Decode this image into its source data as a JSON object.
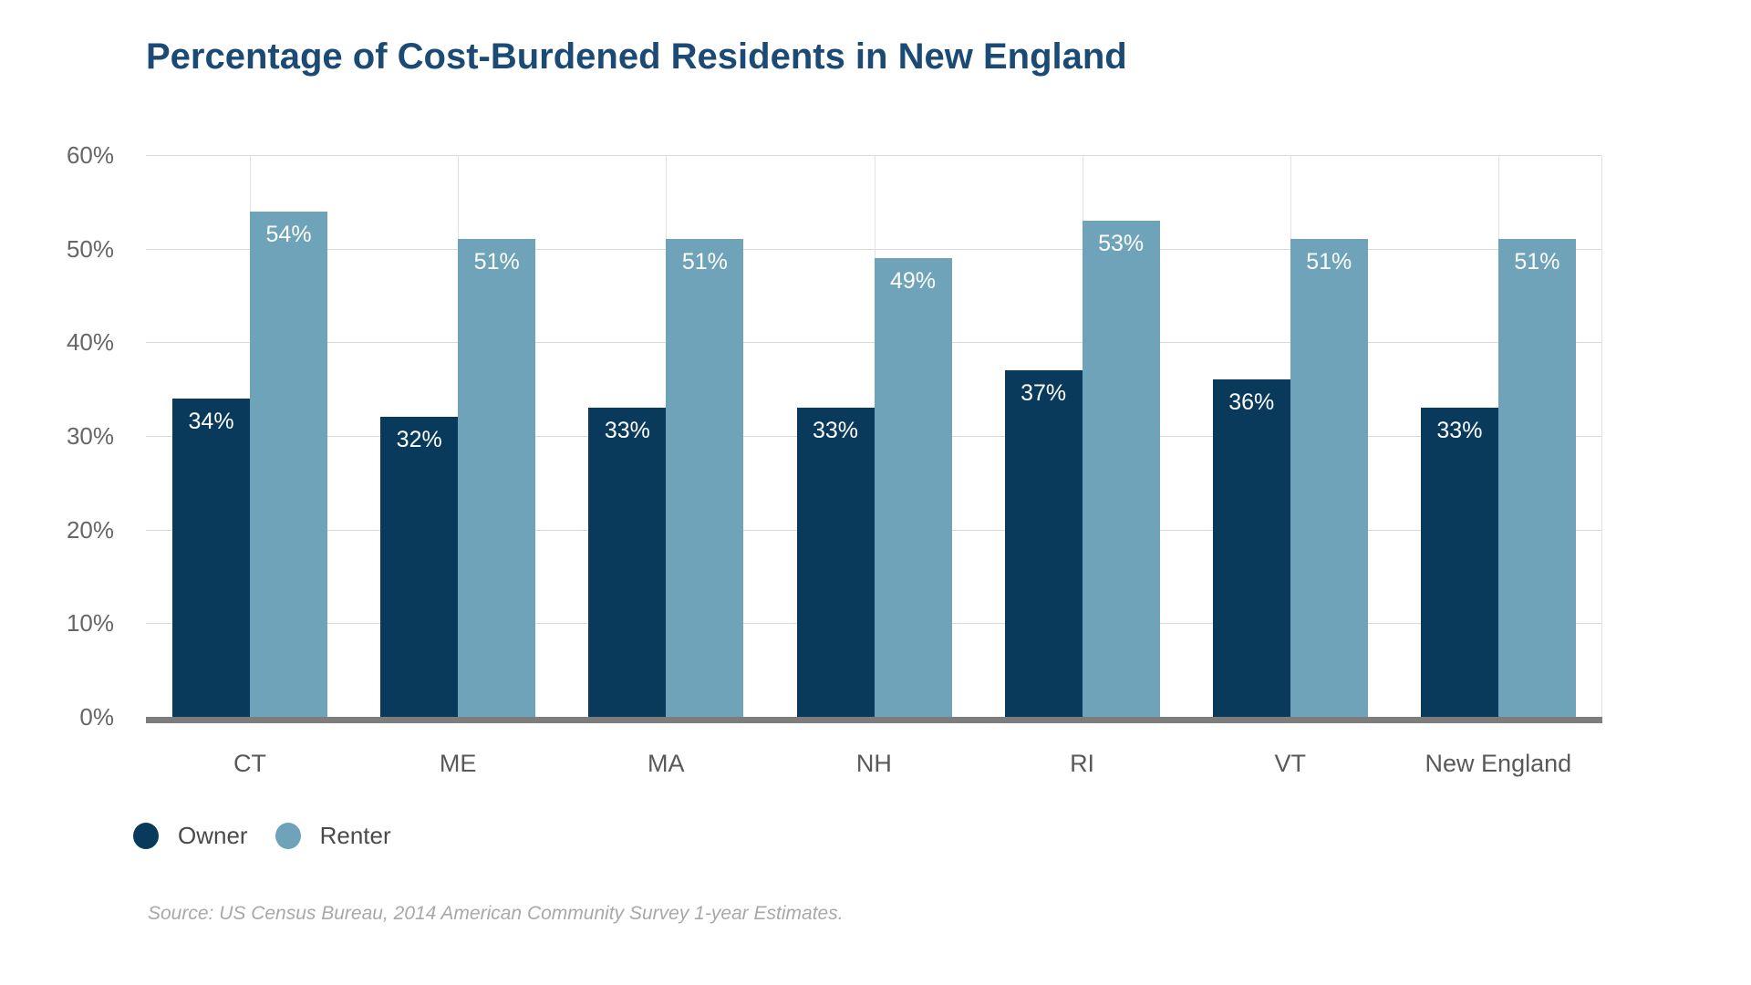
{
  "chart_data": {
    "type": "bar",
    "title": "Percentage of Cost-Burdened Residents in New England",
    "title_color": "#1b4a74",
    "categories": [
      "CT",
      "ME",
      "MA",
      "NH",
      "RI",
      "VT",
      "New England"
    ],
    "series": [
      {
        "name": "Owner",
        "color": "#093a5c",
        "values": [
          34,
          32,
          33,
          33,
          37,
          36,
          33
        ]
      },
      {
        "name": "Renter",
        "color": "#6fa3b9",
        "values": [
          54,
          51,
          51,
          49,
          53,
          51,
          51
        ]
      }
    ],
    "value_suffix": "%",
    "xlabel": "",
    "ylabel": "",
    "ylim": [
      0,
      60
    ],
    "y_axis": {
      "ticks": [
        "0%",
        "10%",
        "20%",
        "30%",
        "40%",
        "50%",
        "60%"
      ],
      "tick_step": 10
    },
    "grid": "horizontal and vertical light gray, thick gray baseline at 0%",
    "legend_position": "bottom-left",
    "source": "Source: US Census Bureau, 2014 American Community Survey 1-year Estimates."
  }
}
